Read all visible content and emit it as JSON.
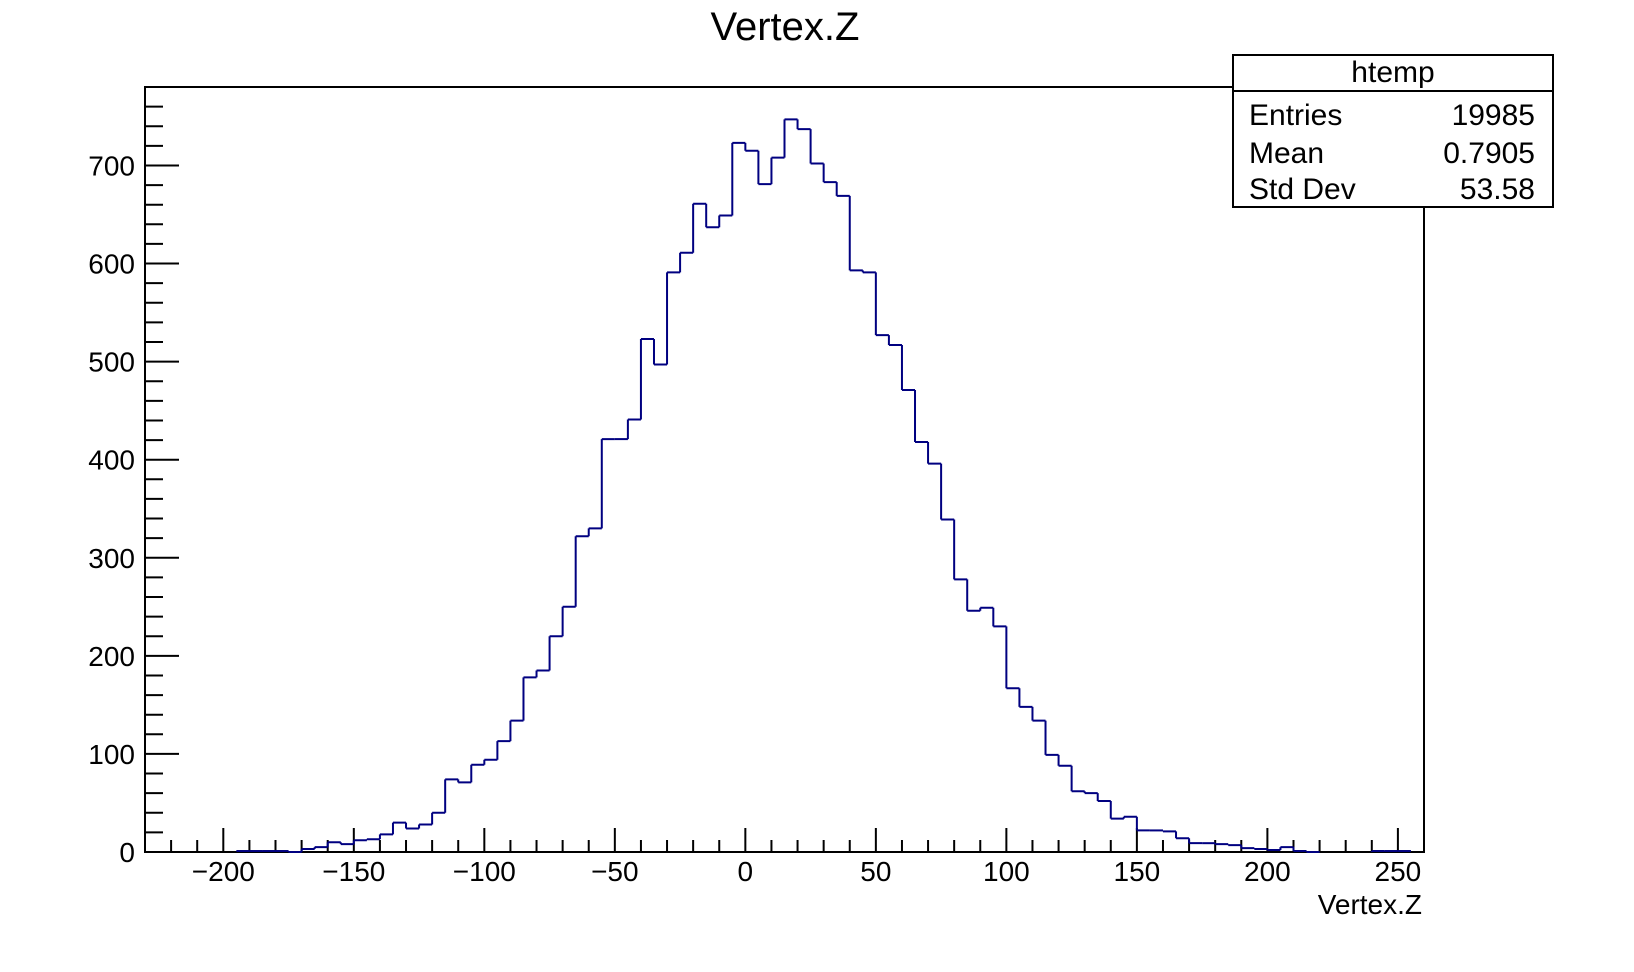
{
  "chart_data": {
    "type": "bar",
    "title": "Vertex.Z",
    "xlabel": "Vertex.Z",
    "ylabel": "",
    "xlim": [
      -230,
      260
    ],
    "ylim": [
      0,
      780
    ],
    "grid": false,
    "line_color": "#000080",
    "x_ticks": [
      -200,
      -150,
      -100,
      -50,
      0,
      50,
      100,
      150,
      200,
      250
    ],
    "x_tick_labels": [
      "−200",
      "−150",
      "−100",
      "−50",
      "0",
      "50",
      "100",
      "150",
      "200",
      "250"
    ],
    "y_ticks": [
      0,
      100,
      200,
      300,
      400,
      500,
      600,
      700
    ],
    "y_tick_labels": [
      "0",
      "100",
      "200",
      "300",
      "400",
      "500",
      "600",
      "700"
    ],
    "bin_low": -195,
    "bin_width": 5,
    "values": [
      1,
      1,
      1,
      1,
      0,
      3,
      5,
      10,
      8,
      12,
      13,
      18,
      30,
      24,
      28,
      40,
      74,
      71,
      89,
      94,
      113,
      134,
      178,
      185,
      220,
      250,
      322,
      330,
      421,
      421,
      441,
      523,
      497,
      591,
      611,
      661,
      637,
      649,
      723,
      715,
      681,
      708,
      747,
      737,
      702,
      683,
      669,
      593,
      591,
      527,
      517,
      471,
      418,
      396,
      339,
      278,
      246,
      249,
      230,
      167,
      148,
      134,
      99,
      88,
      62,
      60,
      52,
      34,
      36,
      22,
      22,
      21,
      14,
      9,
      9,
      8,
      7,
      4,
      3,
      2,
      5,
      1,
      0,
      0,
      0,
      0,
      0,
      1,
      1,
      1
    ],
    "stats": {
      "name": "htemp",
      "rows": [
        {
          "label": "Entries",
          "value": "19985"
        },
        {
          "label": "Mean",
          "value": "0.7905"
        },
        {
          "label": "Std Dev",
          "value": "53.58"
        }
      ]
    }
  }
}
